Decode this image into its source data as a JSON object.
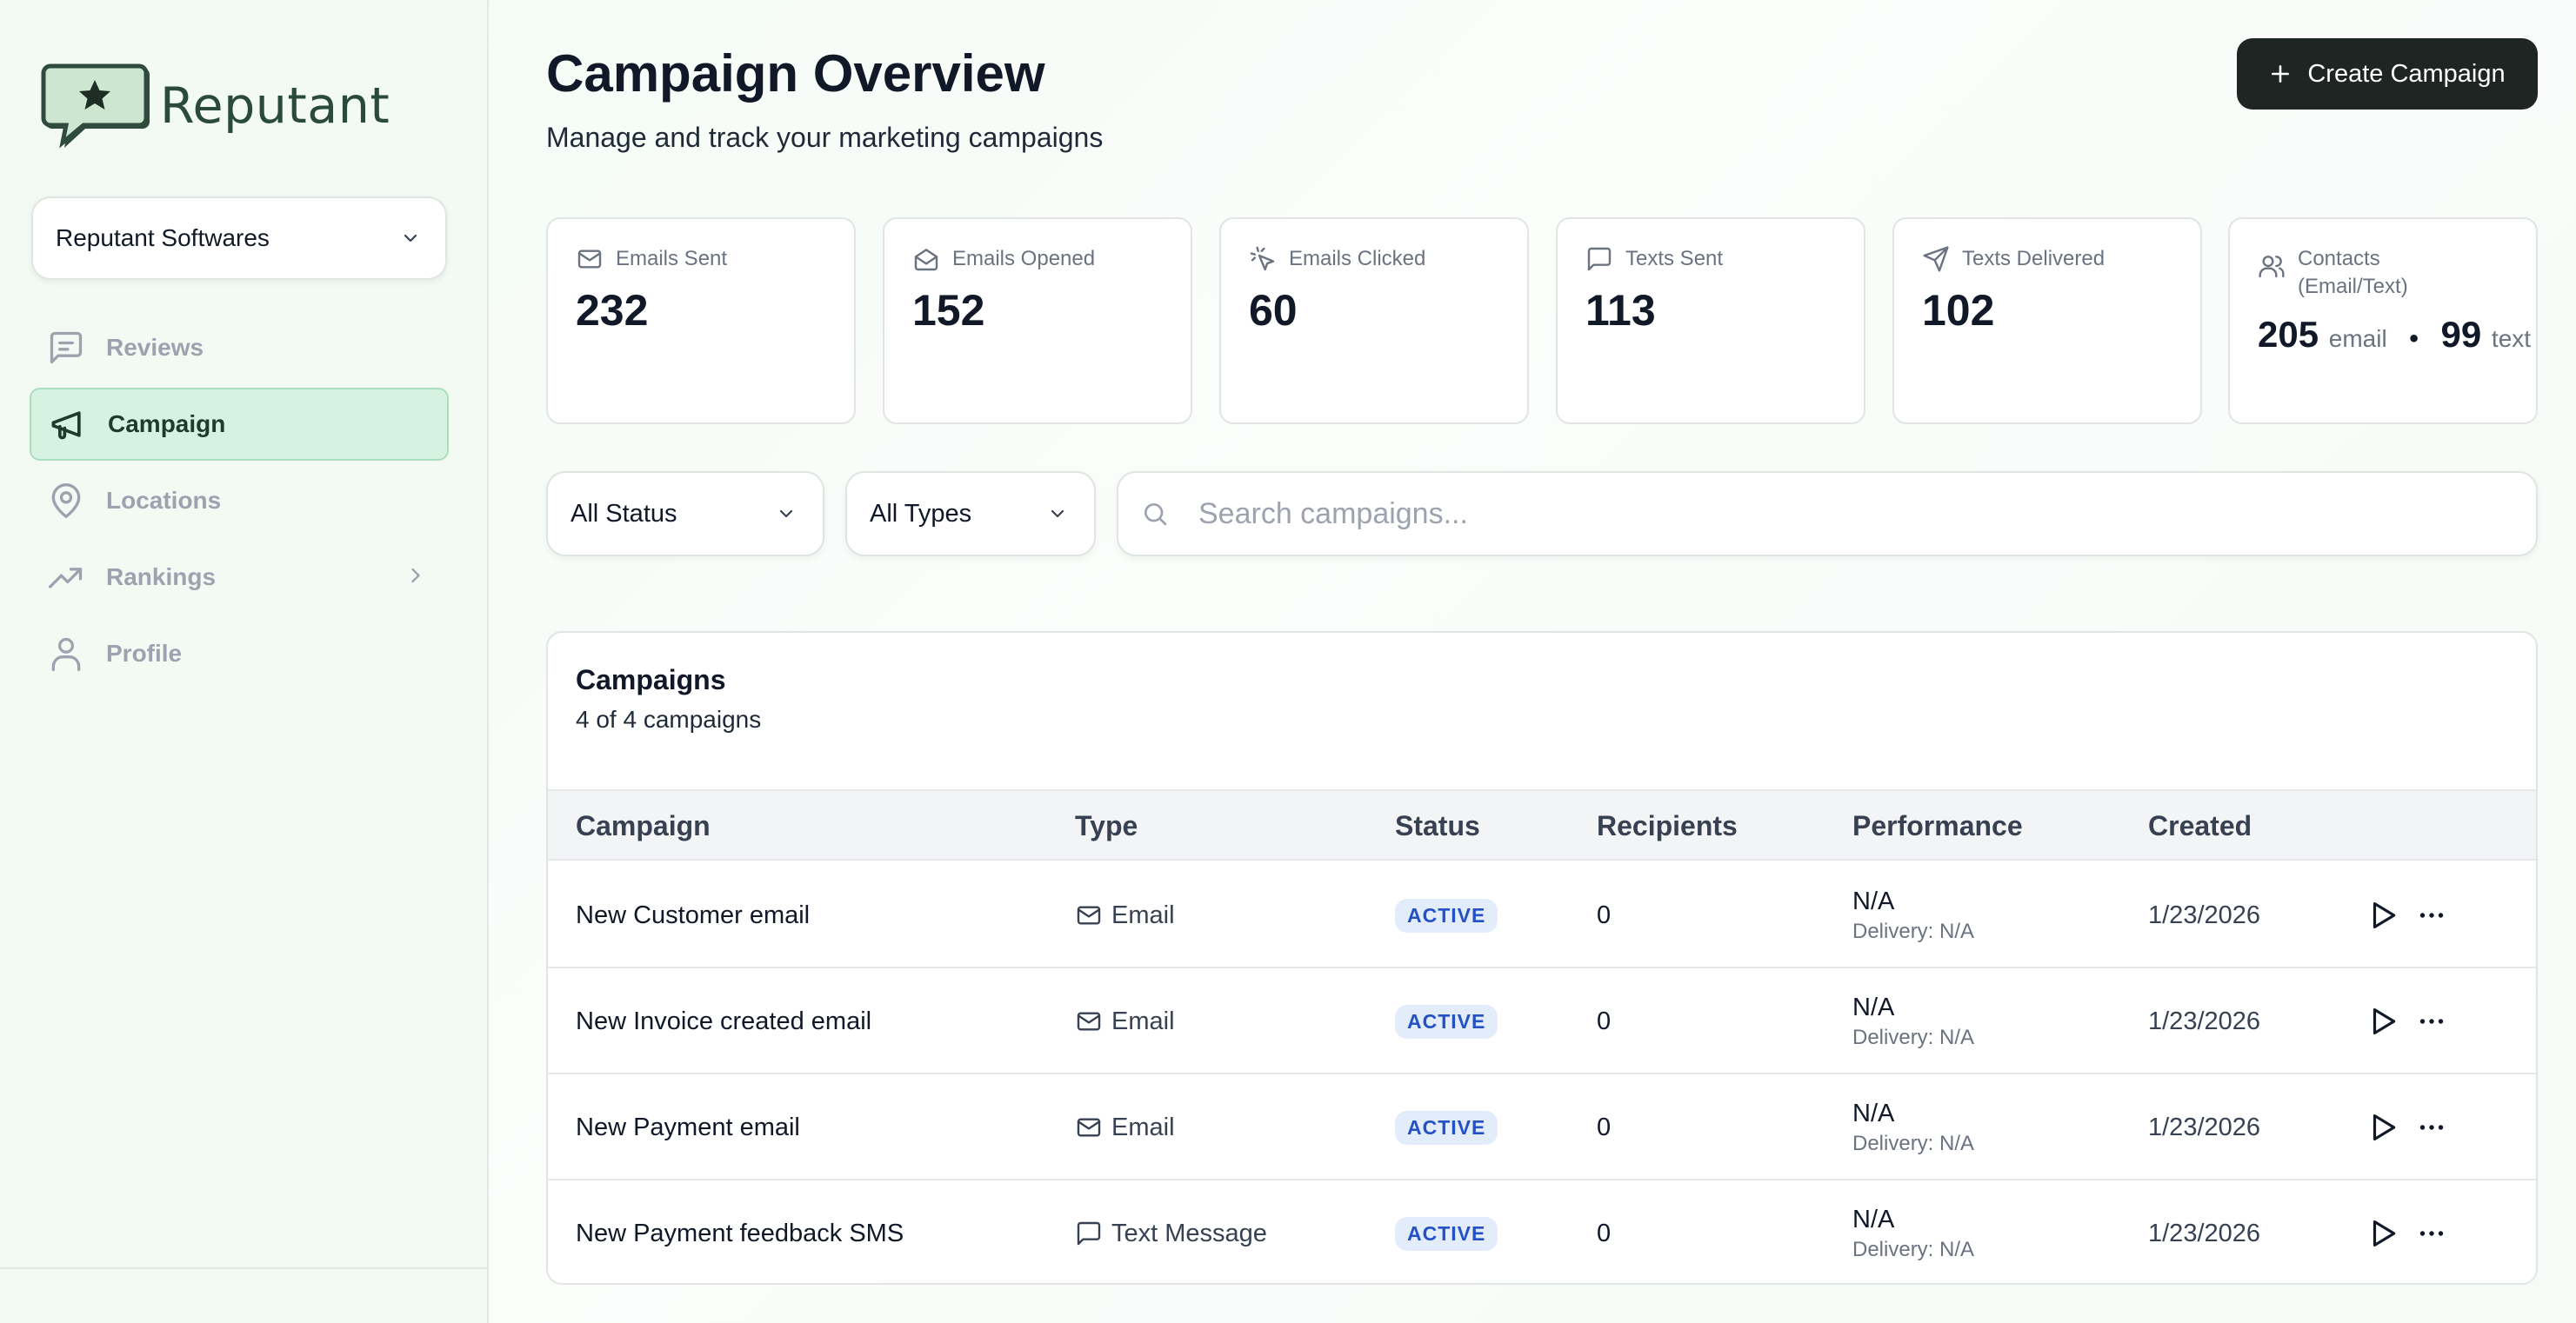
{
  "sidebar": {
    "brand_name": "Reputant",
    "org_selector": "Reputant Softwares",
    "nav": [
      {
        "label": "Reviews",
        "icon": "message-square-icon",
        "active": false
      },
      {
        "label": "Campaign",
        "icon": "megaphone-icon",
        "active": true
      },
      {
        "label": "Locations",
        "icon": "map-pin-icon",
        "active": false
      },
      {
        "label": "Rankings",
        "icon": "trending-up-icon",
        "active": false,
        "expandable": true
      },
      {
        "label": "Profile",
        "icon": "user-icon",
        "active": false
      }
    ]
  },
  "header": {
    "title": "Campaign Overview",
    "subtitle": "Manage and track your marketing campaigns",
    "create_button": "Create Campaign"
  },
  "stats": [
    {
      "label": "Emails Sent",
      "value": "232",
      "icon": "mail-icon"
    },
    {
      "label": "Emails Opened",
      "value": "152",
      "icon": "mail-open-icon"
    },
    {
      "label": "Emails Clicked",
      "value": "60",
      "icon": "mouse-pointer-click-icon"
    },
    {
      "label": "Texts Sent",
      "value": "113",
      "icon": "message-square-icon"
    },
    {
      "label": "Texts Delivered",
      "value": "102",
      "icon": "send-icon"
    }
  ],
  "contacts": {
    "label_line1": "Contacts",
    "label_line2": "(Email/Text)",
    "email_count": "205",
    "email_unit": "email",
    "separator": "•",
    "text_count": "99",
    "text_unit": "text",
    "icon": "users-icon"
  },
  "filters": {
    "status": "All Status",
    "type": "All Types",
    "search_placeholder": "Search campaigns..."
  },
  "table": {
    "title": "Campaigns",
    "count_text": "4 of 4 campaigns",
    "columns": [
      "Campaign",
      "Type",
      "Status",
      "Recipients",
      "Performance",
      "Created"
    ],
    "rows": [
      {
        "name": "New Customer email",
        "type": "Email",
        "type_icon": "mail-icon",
        "status": "ACTIVE",
        "recipients": "0",
        "performance": "N/A",
        "delivery": "Delivery: N/A",
        "created": "1/23/2026"
      },
      {
        "name": "New Invoice created email",
        "type": "Email",
        "type_icon": "mail-icon",
        "status": "ACTIVE",
        "recipients": "0",
        "performance": "N/A",
        "delivery": "Delivery: N/A",
        "created": "1/23/2026"
      },
      {
        "name": "New Payment email",
        "type": "Email",
        "type_icon": "mail-icon",
        "status": "ACTIVE",
        "recipients": "0",
        "performance": "N/A",
        "delivery": "Delivery: N/A",
        "created": "1/23/2026"
      },
      {
        "name": "New Payment feedback SMS",
        "type": "Text Message",
        "type_icon": "message-square-icon",
        "status": "ACTIVE",
        "recipients": "0",
        "performance": "N/A",
        "delivery": "Delivery: N/A",
        "created": "1/23/2026"
      }
    ]
  },
  "colors": {
    "accent_active_bg": "#d6f2e1",
    "primary_button": "#1f2522",
    "badge_bg": "#e3ecfb",
    "badge_text": "#2452c4"
  }
}
